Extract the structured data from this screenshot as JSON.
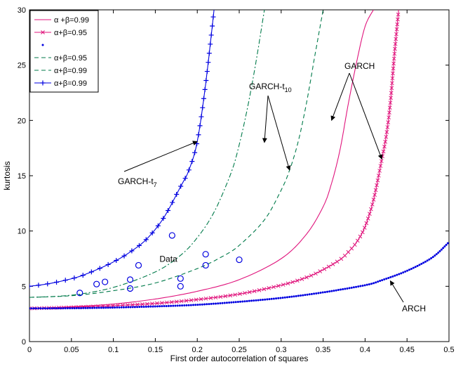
{
  "chart_data": {
    "type": "line",
    "xlabel": "First order autocorrelation of squares",
    "ylabel": "kurtosis",
    "xlim": [
      0,
      0.5
    ],
    "ylim": [
      0,
      30
    ],
    "xticks": [
      "0",
      "0.05",
      "0.1",
      "0.15",
      "0.2",
      "0.25",
      "0.3",
      "0.35",
      "0.4",
      "0.45",
      "0.5"
    ],
    "yticks": [
      "0",
      "5",
      "10",
      "15",
      "20",
      "25",
      "30"
    ],
    "grid": false,
    "legend_position": "top-left",
    "colors": {
      "magenta": "#e0147c",
      "blue": "#0000e0",
      "green": "#007a4a",
      "black": "#000000"
    },
    "legend": [
      {
        "label": "α +β=0.99",
        "color": "#e0147c",
        "style": "solid",
        "marker": "none"
      },
      {
        "label": "α+β=0.95",
        "color": "#e0147c",
        "style": "solid",
        "marker": "x"
      },
      {
        "label": "",
        "color": "#0000e0",
        "style": "none",
        "marker": "dot"
      },
      {
        "label": "α+β=0.95",
        "color": "#007a4a",
        "style": "dashed",
        "marker": "none"
      },
      {
        "label": "α+β=0.99",
        "color": "#007a4a",
        "style": "dashed",
        "marker": "none"
      },
      {
        "label": "α+β=0.99",
        "color": "#0000e0",
        "style": "solid",
        "marker": "plus"
      }
    ],
    "series": [
      {
        "legend_index": 0,
        "color": "#e0147c",
        "style": "solid",
        "marker": "none",
        "x": [
          0,
          0.05,
          0.1,
          0.15,
          0.2,
          0.25,
          0.3,
          0.33,
          0.35,
          0.36,
          0.37,
          0.38,
          0.39,
          0.4,
          0.41
        ],
        "y": [
          3.0,
          3.15,
          3.4,
          3.85,
          4.55,
          5.6,
          7.5,
          9.7,
          12.2,
          14.3,
          17.3,
          21.5,
          25.3,
          28.5,
          30
        ]
      },
      {
        "legend_index": 1,
        "color": "#e0147c",
        "style": "solid",
        "marker": "x",
        "x": [
          0,
          0.05,
          0.1,
          0.15,
          0.2,
          0.25,
          0.3,
          0.33,
          0.35,
          0.37,
          0.38,
          0.39,
          0.4,
          0.41,
          0.42,
          0.425,
          0.43,
          0.435,
          0.44
        ],
        "y": [
          3.0,
          3.1,
          3.25,
          3.45,
          3.8,
          4.3,
          5.1,
          5.8,
          6.5,
          7.4,
          8.1,
          9.0,
          10.4,
          12.8,
          16.5,
          18.5,
          21.5,
          26.0,
          30
        ]
      },
      {
        "legend_index": 2,
        "color": "#0000e0",
        "style": "none",
        "marker": "dot",
        "x": [
          0,
          0.05,
          0.1,
          0.15,
          0.2,
          0.25,
          0.3,
          0.35,
          0.4,
          0.42,
          0.45,
          0.48,
          0.5
        ],
        "y": [
          3.0,
          3.02,
          3.08,
          3.18,
          3.33,
          3.6,
          3.95,
          4.45,
          5.1,
          5.55,
          6.4,
          7.6,
          9.0
        ]
      },
      {
        "legend_index": 3,
        "color": "#007a4a",
        "style": "dashed",
        "marker": "none",
        "x": [
          0,
          0.05,
          0.1,
          0.15,
          0.2,
          0.23,
          0.25,
          0.28,
          0.3,
          0.31,
          0.32,
          0.33,
          0.34,
          0.35
        ],
        "y": [
          4.0,
          4.15,
          4.6,
          5.3,
          6.6,
          7.7,
          8.7,
          11.0,
          13.7,
          15.5,
          18.0,
          21.5,
          25.8,
          30
        ]
      },
      {
        "legend_index": 4,
        "color": "#007a4a",
        "style": "dashdot",
        "marker": "none",
        "x": [
          0,
          0.05,
          0.1,
          0.15,
          0.18,
          0.2,
          0.22,
          0.24,
          0.25,
          0.26,
          0.27,
          0.28
        ],
        "y": [
          4.0,
          4.2,
          4.9,
          6.3,
          7.8,
          9.4,
          11.7,
          15.2,
          17.8,
          21.2,
          25.3,
          30
        ]
      },
      {
        "legend_index": 5,
        "color": "#0000e0",
        "style": "solid",
        "marker": "plus",
        "x": [
          0,
          0.02,
          0.04,
          0.06,
          0.08,
          0.1,
          0.12,
          0.14,
          0.16,
          0.18,
          0.19,
          0.2,
          0.21,
          0.22
        ],
        "y": [
          5.0,
          5.2,
          5.5,
          5.9,
          6.5,
          7.2,
          8.1,
          9.3,
          11.2,
          14.0,
          15.5,
          18.1,
          23.3,
          30
        ]
      }
    ],
    "data_points": {
      "label": "Data",
      "color": "#0000e0",
      "marker": "circle",
      "x": [
        0.06,
        0.08,
        0.09,
        0.12,
        0.12,
        0.13,
        0.17,
        0.18,
        0.18,
        0.21,
        0.21,
        0.25
      ],
      "y": [
        4.4,
        5.2,
        5.4,
        5.6,
        4.8,
        6.9,
        9.6,
        5.0,
        5.7,
        7.9,
        6.9,
        7.4
      ]
    },
    "annotations": [
      {
        "text": "GARCH-t",
        "sub": "7",
        "arrow_targets": [
          [
            0.2,
            18.1
          ]
        ]
      },
      {
        "text": "GARCH-t",
        "sub": "10",
        "arrow_targets": [
          [
            0.28,
            18.0
          ],
          [
            0.31,
            15.5
          ]
        ]
      },
      {
        "text": "GARCH",
        "sub": "",
        "arrow_targets": [
          [
            0.36,
            20.0
          ],
          [
            0.42,
            16.5
          ]
        ]
      },
      {
        "text": "ARCH",
        "sub": "",
        "arrow_targets": [
          [
            0.43,
            5.5
          ]
        ]
      }
    ]
  }
}
